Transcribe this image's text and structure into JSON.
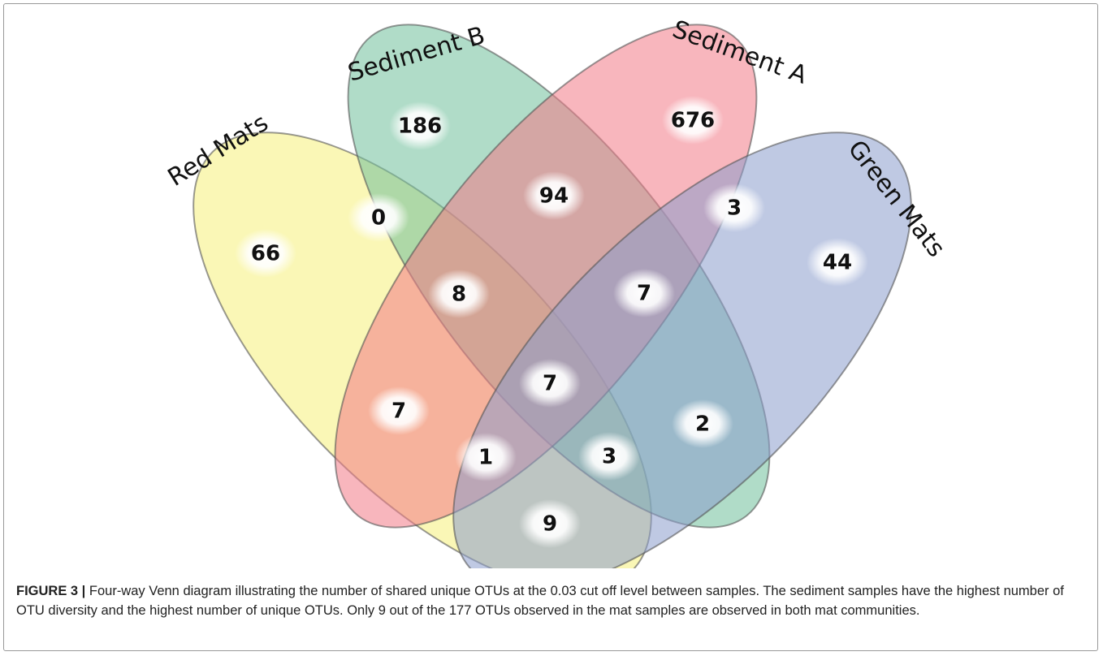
{
  "sets": [
    {
      "label": "Red Mats",
      "color": "#f5f07a"
    },
    {
      "label": "Sediment B",
      "color": "#6fbf9a"
    },
    {
      "label": "Sediment A",
      "color": "#f27a86"
    },
    {
      "label": "Green Mats",
      "color": "#8a9ccc"
    }
  ],
  "regions": [
    {
      "label": "66"
    },
    {
      "label": "186"
    },
    {
      "label": "676"
    },
    {
      "label": "44"
    },
    {
      "label": "0"
    },
    {
      "label": "94"
    },
    {
      "label": "3"
    },
    {
      "label": "8"
    },
    {
      "label": "7"
    },
    {
      "label": "7"
    },
    {
      "label": "7"
    },
    {
      "label": "2"
    },
    {
      "label": "1"
    },
    {
      "label": "3"
    },
    {
      "label": "9"
    }
  ],
  "caption": {
    "label": "FIGURE 3 |",
    "text": "Four-way Venn diagram illustrating the number of shared unique OTUs at the 0.03 cut off level between samples. The sediment samples have the highest number of OTU diversity and the highest number of unique OTUs. Only 9 out of the 177 OTUs observed in the mat samples are observed in both mat communities."
  }
}
